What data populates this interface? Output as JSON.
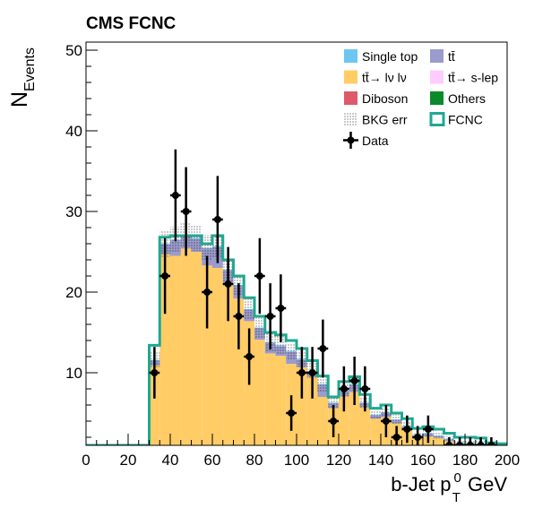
{
  "chart_data": {
    "type": "bar",
    "title": "CMS FCNC",
    "xlabel": "b-Jet p",
    "xlabel_sup": "0",
    "xlabel_sub": "T",
    "xlabel_unit": "GeV",
    "ylabel": "N",
    "ylabel_sub": "Events",
    "xlim": [
      0,
      200
    ],
    "ylim": [
      1,
      51
    ],
    "xticks": [
      0,
      20,
      40,
      60,
      80,
      100,
      120,
      140,
      160,
      180,
      200
    ],
    "yticks": [
      10,
      20,
      30,
      40,
      50
    ],
    "bin_edges": [
      0,
      5,
      10,
      15,
      20,
      25,
      30,
      35,
      40,
      45,
      50,
      55,
      60,
      65,
      70,
      75,
      80,
      85,
      90,
      95,
      100,
      105,
      110,
      115,
      120,
      125,
      130,
      135,
      140,
      145,
      150,
      155,
      160,
      165,
      170,
      175,
      180,
      185,
      190,
      195,
      200
    ],
    "stack_order": [
      "Diboson",
      "tt̄ s-lep",
      "tt̄→ lν lν",
      "tt̄",
      "Others",
      "Single top"
    ],
    "series": [
      {
        "name": "Single top",
        "color": "#6ec6f0",
        "values": [
          0,
          0,
          0,
          0,
          0,
          0,
          0.1,
          0.1,
          0.1,
          0.1,
          0.1,
          0.1,
          0.1,
          0.1,
          0.1,
          0.1,
          0.1,
          0.1,
          0.1,
          0.1,
          0.1,
          0.1,
          0.1,
          0.1,
          0.1,
          0.1,
          0.1,
          0.1,
          0.1,
          0.1,
          0.1,
          0.1,
          0.1,
          0.1,
          0.1,
          0.1,
          0.1,
          0.1,
          0.1,
          0.1
        ]
      },
      {
        "name": "Others",
        "color": "#0a8a2a",
        "values": [
          0,
          0,
          0,
          0,
          0,
          0,
          0,
          0,
          0,
          0,
          0,
          0,
          0,
          0,
          0,
          0,
          0,
          0,
          0,
          0,
          0,
          0,
          0,
          0,
          0,
          0,
          0,
          0,
          0,
          0,
          0,
          0,
          0,
          0,
          0,
          0,
          0,
          0,
          0,
          0
        ]
      },
      {
        "name": "tt̄",
        "color": "#9b9bcd",
        "values": [
          0,
          0,
          0,
          0,
          0,
          0,
          0.6,
          1.2,
          1.9,
          1.6,
          1.6,
          2.1,
          2.6,
          1.8,
          1.6,
          1.4,
          1.4,
          1.3,
          1.2,
          1.5,
          0.9,
          0.6,
          1.5,
          0.6,
          0.6,
          0.9,
          0.5,
          0.4,
          0.5,
          0.4,
          0.3,
          0.3,
          0.3,
          0.2,
          0.2,
          0.2,
          0.2,
          0.2,
          0.2,
          0.2
        ]
      },
      {
        "name": "tt̄→ lν lν",
        "color": "#ffcc66",
        "values": [
          0,
          0,
          0,
          0,
          0,
          0,
          10.7,
          23.8,
          23.6,
          24.6,
          24.3,
          22.6,
          22.4,
          20.4,
          18.8,
          16.0,
          13.8,
          12.1,
          11.8,
          10.8,
          10.5,
          9.3,
          6.8,
          5.4,
          6.9,
          7.4,
          5.5,
          4.1,
          4.3,
          3.5,
          2.9,
          1.8,
          2.0,
          1.8,
          1.4,
          0.9,
          0.9,
          0.8,
          0.3,
          0.1
        ]
      },
      {
        "name": "tt̄→ s-lep",
        "color": "#ffccff",
        "values": [
          0,
          0,
          0,
          0,
          0,
          0,
          0.6,
          0.4,
          0.5,
          0.4,
          0.3,
          0.4,
          0.4,
          0.3,
          0.3,
          0.3,
          0.3,
          0.3,
          0.3,
          0.3,
          0.2,
          0.2,
          0.2,
          0.2,
          0.2,
          0.2,
          0.2,
          0.1,
          0.1,
          0.1,
          0.1,
          0.1,
          0.1,
          0.1,
          0.1,
          0.1,
          0.1,
          0.1,
          0.1,
          0.1
        ]
      },
      {
        "name": "Diboson",
        "color": "#de5a6a",
        "values": [
          0,
          0,
          0,
          0,
          0,
          0,
          0.2,
          0.9,
          0.9,
          0.8,
          0.7,
          0.7,
          0.6,
          0.5,
          0.4,
          0.4,
          0.3,
          0.3,
          0.3,
          0.3,
          0.2,
          0.2,
          0.2,
          0.2,
          0.2,
          0.2,
          0.2,
          0.2,
          0.2,
          0.2,
          0.1,
          0.1,
          0.1,
          0.1,
          0.1,
          0.1,
          0.1,
          0.1,
          0.1,
          0.1
        ]
      }
    ],
    "fcnc": {
      "name": "FCNC",
      "color": "#20a890",
      "values": [
        1,
        1,
        1,
        1,
        1,
        1,
        13.4,
        26.8,
        27.0,
        27.0,
        27.0,
        26.0,
        27.0,
        24.0,
        22.0,
        19.3,
        17.0,
        15.0,
        14.7,
        14.0,
        13.0,
        11.5,
        9.6,
        7.0,
        8.9,
        9.5,
        7.3,
        5.6,
        6.0,
        5.0,
        4.3,
        3.1,
        3.3,
        3.0,
        2.5,
        2.0,
        2.0,
        1.9,
        1.3,
        1.2
      ]
    },
    "bkg_err": [
      0,
      0,
      0,
      0,
      0,
      0,
      1.0,
      1.6,
      1.6,
      1.6,
      1.6,
      1.6,
      1.5,
      1.5,
      1.4,
      1.3,
      1.2,
      1.1,
      1.1,
      1.0,
      1.0,
      1.0,
      0.9,
      0.8,
      0.8,
      0.8,
      0.7,
      0.6,
      0.6,
      0.6,
      0.5,
      0.4,
      0.4,
      0.4,
      0.3,
      0.3,
      0.3,
      0.3,
      0.2,
      0.2
    ],
    "data": {
      "name": "Data",
      "x": [
        32.5,
        37.5,
        42.5,
        47.5,
        57.5,
        62.5,
        67.5,
        72.5,
        77.5,
        82.5,
        87.5,
        92.5,
        97.5,
        102.5,
        107.5,
        112.5,
        117.5,
        122.5,
        127.5,
        132.5,
        142.5,
        147.5,
        152.5,
        157.5,
        162.5,
        172.5,
        177.5,
        182.5,
        187.5,
        192.5
      ],
      "y": [
        10,
        22,
        32,
        30,
        20,
        29,
        21,
        17,
        12,
        22,
        17,
        18,
        5,
        10,
        10,
        13,
        4,
        8,
        9,
        8,
        4,
        2,
        3,
        2,
        3,
        1,
        1,
        1,
        1,
        1
      ],
      "yerr": [
        3.2,
        4.7,
        5.7,
        5.5,
        4.5,
        5.4,
        4.6,
        4.1,
        3.5,
        4.7,
        4.1,
        4.2,
        2.2,
        3.2,
        3.2,
        3.6,
        2.0,
        2.8,
        3.0,
        2.8,
        2.0,
        1.4,
        1.7,
        1.4,
        1.7,
        1.0,
        1.0,
        1.0,
        1.0,
        1.0
      ]
    },
    "legend": {
      "placement": "top-right",
      "entries": [
        {
          "label": "Single top",
          "style": "fill",
          "color": "#6ec6f0"
        },
        {
          "label": "tt̄",
          "style": "fill",
          "color": "#9b9bcd"
        },
        {
          "label": "tt̄→ lν lν",
          "style": "fill",
          "color": "#ffcc66"
        },
        {
          "label": "tt̄→ s-lep",
          "style": "fill",
          "color": "#ffccff"
        },
        {
          "label": "Diboson",
          "style": "fill",
          "color": "#de5a6a"
        },
        {
          "label": "Others",
          "style": "fill",
          "color": "#0a8a2a"
        },
        {
          "label": "BKG err",
          "style": "hatch",
          "color": "#000000"
        },
        {
          "label": "FCNC",
          "style": "outline",
          "color": "#20a890"
        },
        {
          "label": "Data",
          "style": "marker",
          "color": "#000000"
        }
      ]
    }
  }
}
